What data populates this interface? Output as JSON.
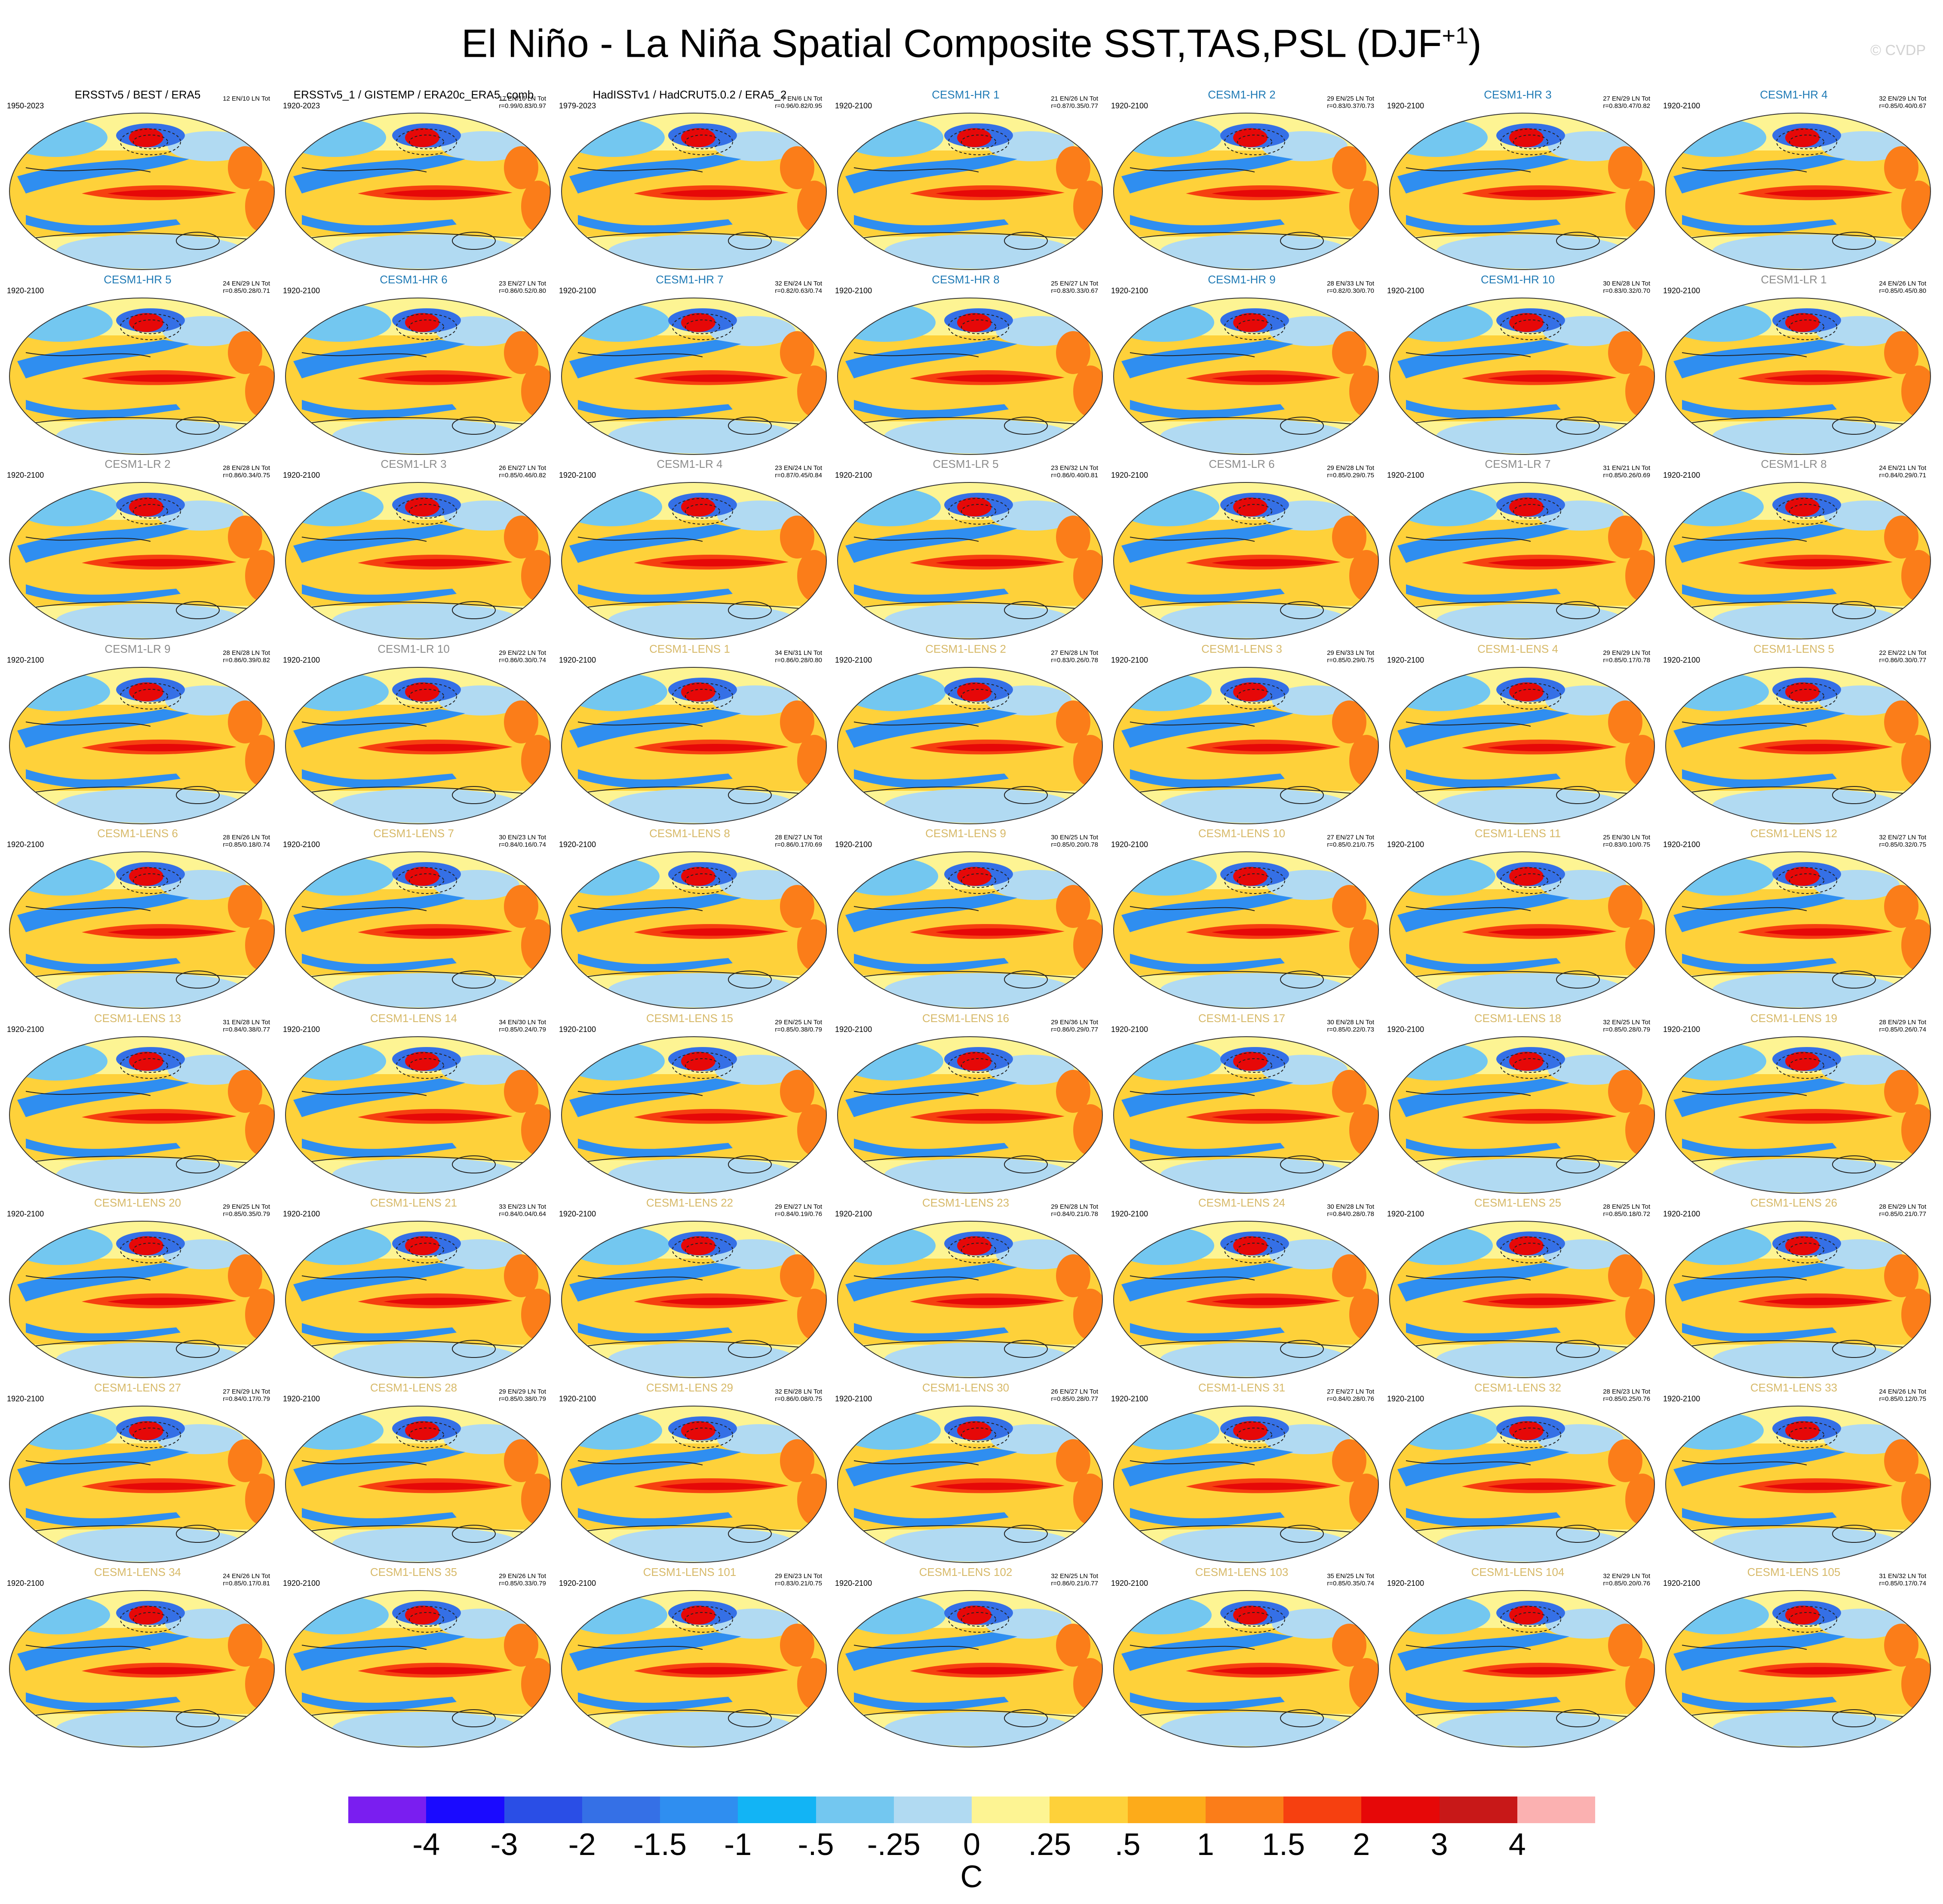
{
  "title": "El Niño - La Niña Spatial Composite SST,TAS,PSL (DJF",
  "title_sup": "+1",
  "title_close": ")",
  "watermark": "© CVDP",
  "panels": [
    {
      "title": "ERSSTv5 / BEST / ERA5",
      "period": "1950-2023",
      "stats1": "12 EN/10 LN Tot",
      "stats2": "",
      "kind": "obs"
    },
    {
      "title": "ERSSTv5_1 / GISTEMP / ERA20c_ERA5_comb",
      "period": "1920-2023",
      "stats1": "17 EN/16 LN Tot",
      "stats2": "r=0.99/0.83/0.97",
      "kind": "obs"
    },
    {
      "title": "HadISSTv1 / HadCRUT5.0.2 / ERA5_2",
      "period": "1979-2023",
      "stats1": "7 EN/6 LN Tot",
      "stats2": "r=0.96/0.82/0.95",
      "kind": "obs"
    },
    {
      "title": "CESM1-HR 1",
      "period": "1920-2100",
      "stats1": "21 EN/26 LN Tot",
      "stats2": "r=0.87/0.35/0.77",
      "kind": "hr"
    },
    {
      "title": "CESM1-HR 2",
      "period": "1920-2100",
      "stats1": "29 EN/25 LN Tot",
      "stats2": "r=0.83/0.37/0.73",
      "kind": "hr"
    },
    {
      "title": "CESM1-HR 3",
      "period": "1920-2100",
      "stats1": "27 EN/29 LN Tot",
      "stats2": "r=0.83/0.47/0.82",
      "kind": "hr"
    },
    {
      "title": "CESM1-HR 4",
      "period": "1920-2100",
      "stats1": "32 EN/29 LN Tot",
      "stats2": "r=0.85/0.40/0.67",
      "kind": "hr"
    },
    {
      "title": "CESM1-HR 5",
      "period": "1920-2100",
      "stats1": "24 EN/29 LN Tot",
      "stats2": "r=0.85/0.28/0.71",
      "kind": "hr"
    },
    {
      "title": "CESM1-HR 6",
      "period": "1920-2100",
      "stats1": "23 EN/27 LN Tot",
      "stats2": "r=0.86/0.52/0.80",
      "kind": "hr"
    },
    {
      "title": "CESM1-HR 7",
      "period": "1920-2100",
      "stats1": "32 EN/24 LN Tot",
      "stats2": "r=0.82/0.63/0.74",
      "kind": "hr"
    },
    {
      "title": "CESM1-HR 8",
      "period": "1920-2100",
      "stats1": "25 EN/27 LN Tot",
      "stats2": "r=0.83/0.33/0.67",
      "kind": "hr"
    },
    {
      "title": "CESM1-HR 9",
      "period": "1920-2100",
      "stats1": "28 EN/33 LN Tot",
      "stats2": "r=0.82/0.30/0.70",
      "kind": "hr"
    },
    {
      "title": "CESM1-HR 10",
      "period": "1920-2100",
      "stats1": "30 EN/28 LN Tot",
      "stats2": "r=0.83/0.32/0.70",
      "kind": "hr"
    },
    {
      "title": "CESM1-LR 1",
      "period": "1920-2100",
      "stats1": "24 EN/26 LN Tot",
      "stats2": "r=0.85/0.45/0.80",
      "kind": "lr"
    },
    {
      "title": "CESM1-LR 2",
      "period": "1920-2100",
      "stats1": "28 EN/28 LN Tot",
      "stats2": "r=0.86/0.34/0.75",
      "kind": "lr"
    },
    {
      "title": "CESM1-LR 3",
      "period": "1920-2100",
      "stats1": "26 EN/27 LN Tot",
      "stats2": "r=0.85/0.46/0.82",
      "kind": "lr"
    },
    {
      "title": "CESM1-LR 4",
      "period": "1920-2100",
      "stats1": "23 EN/24 LN Tot",
      "stats2": "r=0.87/0.45/0.84",
      "kind": "lr"
    },
    {
      "title": "CESM1-LR 5",
      "period": "1920-2100",
      "stats1": "23 EN/32 LN Tot",
      "stats2": "r=0.86/0.40/0.81",
      "kind": "lr"
    },
    {
      "title": "CESM1-LR 6",
      "period": "1920-2100",
      "stats1": "29 EN/28 LN Tot",
      "stats2": "r=0.85/0.29/0.75",
      "kind": "lr"
    },
    {
      "title": "CESM1-LR 7",
      "period": "1920-2100",
      "stats1": "31 EN/21 LN Tot",
      "stats2": "r=0.85/0.26/0.69",
      "kind": "lr"
    },
    {
      "title": "CESM1-LR 8",
      "period": "1920-2100",
      "stats1": "24 EN/21 LN Tot",
      "stats2": "r=0.84/0.29/0.71",
      "kind": "lr"
    },
    {
      "title": "CESM1-LR 9",
      "period": "1920-2100",
      "stats1": "28 EN/28 LN Tot",
      "stats2": "r=0.86/0.39/0.82",
      "kind": "lr"
    },
    {
      "title": "CESM1-LR 10",
      "period": "1920-2100",
      "stats1": "29 EN/22 LN Tot",
      "stats2": "r=0.86/0.30/0.74",
      "kind": "lr"
    },
    {
      "title": "CESM1-LENS 1",
      "period": "1920-2100",
      "stats1": "34 EN/31 LN Tot",
      "stats2": "r=0.86/0.28/0.80",
      "kind": "lens"
    },
    {
      "title": "CESM1-LENS 2",
      "period": "1920-2100",
      "stats1": "27 EN/28 LN Tot",
      "stats2": "r=0.83/0.26/0.78",
      "kind": "lens"
    },
    {
      "title": "CESM1-LENS 3",
      "period": "1920-2100",
      "stats1": "29 EN/33 LN Tot",
      "stats2": "r=0.85/0.29/0.75",
      "kind": "lens"
    },
    {
      "title": "CESM1-LENS 4",
      "period": "1920-2100",
      "stats1": "29 EN/29 LN Tot",
      "stats2": "r=0.85/0.17/0.78",
      "kind": "lens"
    },
    {
      "title": "CESM1-LENS 5",
      "period": "1920-2100",
      "stats1": "22 EN/22 LN Tot",
      "stats2": "r=0.86/0.30/0.77",
      "kind": "lens"
    },
    {
      "title": "CESM1-LENS 6",
      "period": "1920-2100",
      "stats1": "28 EN/26 LN Tot",
      "stats2": "r=0.85/0.18/0.74",
      "kind": "lens"
    },
    {
      "title": "CESM1-LENS 7",
      "period": "1920-2100",
      "stats1": "30 EN/23 LN Tot",
      "stats2": "r=0.84/0.16/0.74",
      "kind": "lens"
    },
    {
      "title": "CESM1-LENS 8",
      "period": "1920-2100",
      "stats1": "28 EN/27 LN Tot",
      "stats2": "r=0.86/0.17/0.69",
      "kind": "lens"
    },
    {
      "title": "CESM1-LENS 9",
      "period": "1920-2100",
      "stats1": "30 EN/25 LN Tot",
      "stats2": "r=0.85/0.20/0.78",
      "kind": "lens"
    },
    {
      "title": "CESM1-LENS 10",
      "period": "1920-2100",
      "stats1": "27 EN/27 LN Tot",
      "stats2": "r=0.85/0.21/0.75",
      "kind": "lens"
    },
    {
      "title": "CESM1-LENS 11",
      "period": "1920-2100",
      "stats1": "25 EN/30 LN Tot",
      "stats2": "r=0.83/0.10/0.75",
      "kind": "lens"
    },
    {
      "title": "CESM1-LENS 12",
      "period": "1920-2100",
      "stats1": "32 EN/27 LN Tot",
      "stats2": "r=0.85/0.32/0.75",
      "kind": "lens"
    },
    {
      "title": "CESM1-LENS 13",
      "period": "1920-2100",
      "stats1": "31 EN/28 LN Tot",
      "stats2": "r=0.84/0.38/0.77",
      "kind": "lens"
    },
    {
      "title": "CESM1-LENS 14",
      "period": "1920-2100",
      "stats1": "34 EN/30 LN Tot",
      "stats2": "r=0.85/0.24/0.79",
      "kind": "lens"
    },
    {
      "title": "CESM1-LENS 15",
      "period": "1920-2100",
      "stats1": "29 EN/25 LN Tot",
      "stats2": "r=0.85/0.38/0.79",
      "kind": "lens"
    },
    {
      "title": "CESM1-LENS 16",
      "period": "1920-2100",
      "stats1": "29 EN/36 LN Tot",
      "stats2": "r=0.86/0.29/0.77",
      "kind": "lens"
    },
    {
      "title": "CESM1-LENS 17",
      "period": "1920-2100",
      "stats1": "30 EN/28 LN Tot",
      "stats2": "r=0.85/0.22/0.73",
      "kind": "lens"
    },
    {
      "title": "CESM1-LENS 18",
      "period": "1920-2100",
      "stats1": "32 EN/25 LN Tot",
      "stats2": "r=0.85/0.28/0.79",
      "kind": "lens"
    },
    {
      "title": "CESM1-LENS 19",
      "period": "1920-2100",
      "stats1": "28 EN/29 LN Tot",
      "stats2": "r=0.85/0.26/0.74",
      "kind": "lens"
    },
    {
      "title": "CESM1-LENS 20",
      "period": "1920-2100",
      "stats1": "29 EN/25 LN Tot",
      "stats2": "r=0.85/0.35/0.79",
      "kind": "lens"
    },
    {
      "title": "CESM1-LENS 21",
      "period": "1920-2100",
      "stats1": "33 EN/23 LN Tot",
      "stats2": "r=0.84/0.04/0.64",
      "kind": "lens"
    },
    {
      "title": "CESM1-LENS 22",
      "period": "1920-2100",
      "stats1": "29 EN/27 LN Tot",
      "stats2": "r=0.84/0.19/0.76",
      "kind": "lens"
    },
    {
      "title": "CESM1-LENS 23",
      "period": "1920-2100",
      "stats1": "29 EN/28 LN Tot",
      "stats2": "r=0.84/0.21/0.78",
      "kind": "lens"
    },
    {
      "title": "CESM1-LENS 24",
      "period": "1920-2100",
      "stats1": "30 EN/28 LN Tot",
      "stats2": "r=0.84/0.28/0.78",
      "kind": "lens"
    },
    {
      "title": "CESM1-LENS 25",
      "period": "1920-2100",
      "stats1": "28 EN/25 LN Tot",
      "stats2": "r=0.85/0.18/0.72",
      "kind": "lens"
    },
    {
      "title": "CESM1-LENS 26",
      "period": "1920-2100",
      "stats1": "28 EN/29 LN Tot",
      "stats2": "r=0.85/0.21/0.77",
      "kind": "lens"
    },
    {
      "title": "CESM1-LENS 27",
      "period": "1920-2100",
      "stats1": "27 EN/29 LN Tot",
      "stats2": "r=0.84/0.17/0.79",
      "kind": "lens"
    },
    {
      "title": "CESM1-LENS 28",
      "period": "1920-2100",
      "stats1": "29 EN/29 LN Tot",
      "stats2": "r=0.85/0.38/0.79",
      "kind": "lens"
    },
    {
      "title": "CESM1-LENS 29",
      "period": "1920-2100",
      "stats1": "32 EN/28 LN Tot",
      "stats2": "r=0.86/0.08/0.75",
      "kind": "lens"
    },
    {
      "title": "CESM1-LENS 30",
      "period": "1920-2100",
      "stats1": "26 EN/27 LN Tot",
      "stats2": "r=0.85/0.28/0.77",
      "kind": "lens"
    },
    {
      "title": "CESM1-LENS 31",
      "period": "1920-2100",
      "stats1": "27 EN/27 LN Tot",
      "stats2": "r=0.84/0.28/0.76",
      "kind": "lens"
    },
    {
      "title": "CESM1-LENS 32",
      "period": "1920-2100",
      "stats1": "28 EN/23 LN Tot",
      "stats2": "r=0.85/0.25/0.76",
      "kind": "lens"
    },
    {
      "title": "CESM1-LENS 33",
      "period": "1920-2100",
      "stats1": "24 EN/26 LN Tot",
      "stats2": "r=0.85/0.12/0.75",
      "kind": "lens"
    },
    {
      "title": "CESM1-LENS 34",
      "period": "1920-2100",
      "stats1": "24 EN/26 LN Tot",
      "stats2": "r=0.85/0.17/0.81",
      "kind": "lens"
    },
    {
      "title": "CESM1-LENS 35",
      "period": "1920-2100",
      "stats1": "29 EN/26 LN Tot",
      "stats2": "r=0.85/0.33/0.79",
      "kind": "lens"
    },
    {
      "title": "CESM1-LENS 101",
      "period": "1920-2100",
      "stats1": "29 EN/23 LN Tot",
      "stats2": "r=0.83/0.21/0.75",
      "kind": "lens"
    },
    {
      "title": "CESM1-LENS 102",
      "period": "1920-2100",
      "stats1": "32 EN/25 LN Tot",
      "stats2": "r=0.86/0.21/0.77",
      "kind": "lens"
    },
    {
      "title": "CESM1-LENS 103",
      "period": "1920-2100",
      "stats1": "35 EN/25 LN Tot",
      "stats2": "r=0.85/0.35/0.74",
      "kind": "lens"
    },
    {
      "title": "CESM1-LENS 104",
      "period": "1920-2100",
      "stats1": "32 EN/29 LN Tot",
      "stats2": "r=0.85/0.20/0.76",
      "kind": "lens"
    },
    {
      "title": "CESM1-LENS 105",
      "period": "1920-2100",
      "stats1": "31 EN/32 LN Tot",
      "stats2": "r=0.85/0.17/0.74",
      "kind": "lens"
    }
  ],
  "title_colors": {
    "obs": "#000000",
    "hr": "#1f7ab5",
    "lr": "#8c8c8c",
    "lens": "#d7b968"
  },
  "colorbar": {
    "colors": [
      "#7a1ef0",
      "#1a0aff",
      "#2a4ee6",
      "#3570e6",
      "#2f8ef0",
      "#12b4f5",
      "#73c7f0",
      "#b1daf2",
      "#fdf493",
      "#fed13a",
      "#fdab1a",
      "#fb7d19",
      "#f64010",
      "#e60808",
      "#c81818",
      "#fbb1b1"
    ],
    "labels": [
      "-4",
      "-3",
      "-2",
      "-1.5",
      "-1",
      "-.5",
      "-.25",
      "0",
      ".25",
      ".5",
      "1",
      "1.5",
      "2",
      "3",
      "4"
    ],
    "unit": "C"
  }
}
